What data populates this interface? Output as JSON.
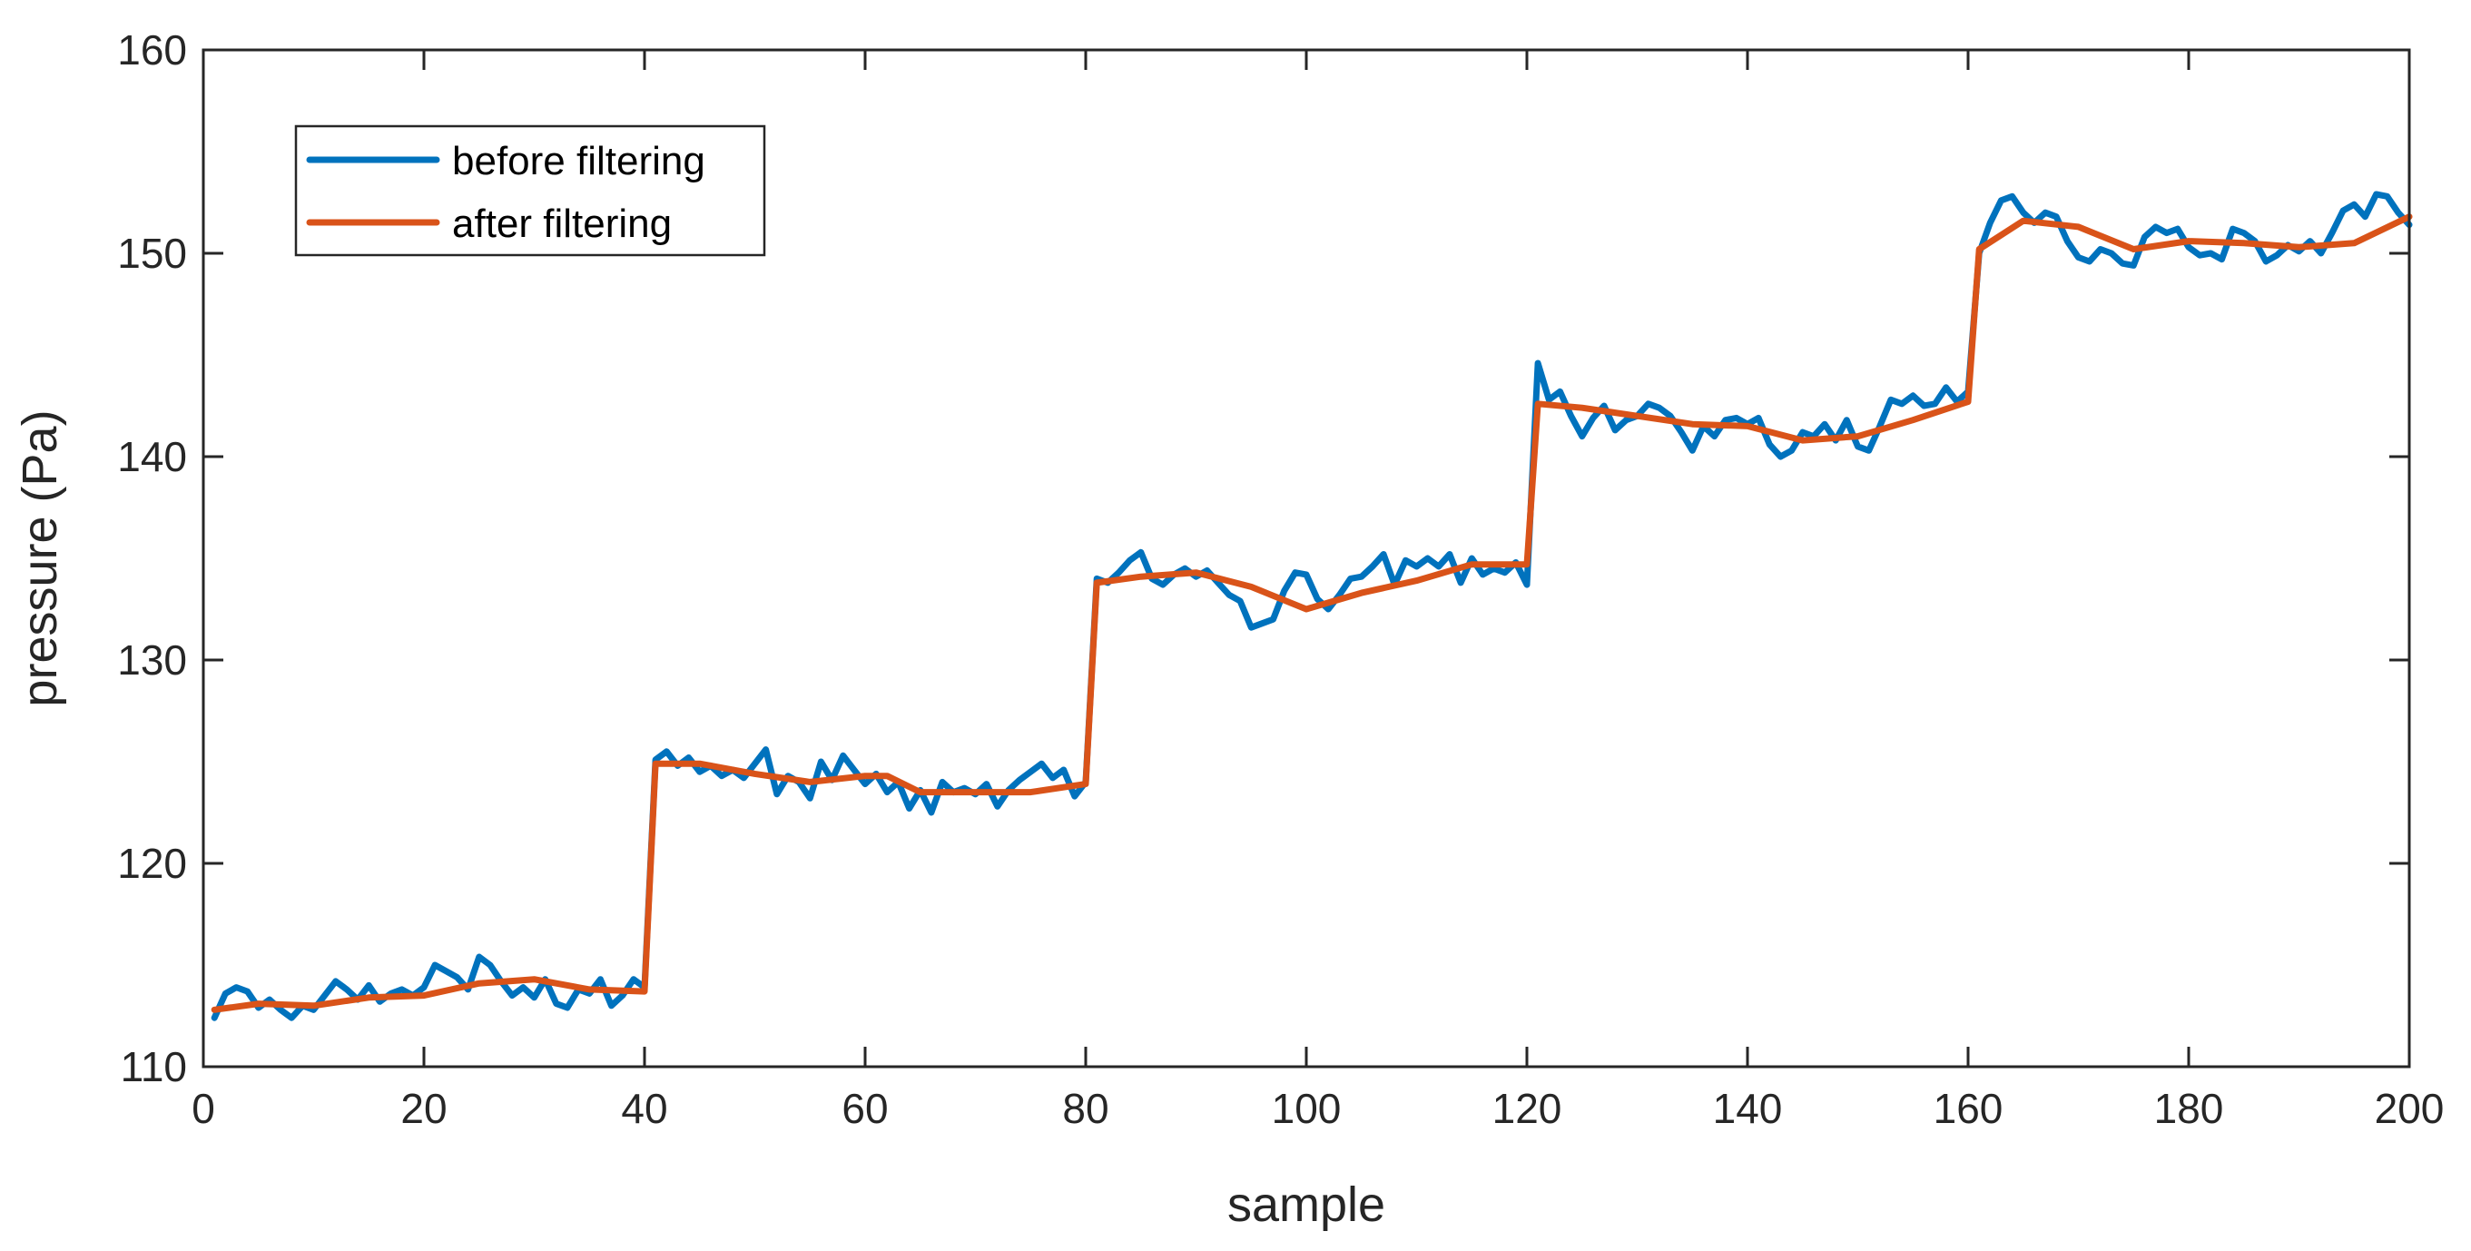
{
  "chart_data": {
    "type": "line",
    "title": "",
    "xlabel": "sample",
    "ylabel": "pressure (Pa)",
    "xlim": [
      0,
      200
    ],
    "ylim": [
      110,
      160
    ],
    "xticks": [
      0,
      20,
      40,
      60,
      80,
      100,
      120,
      140,
      160,
      180,
      200
    ],
    "yticks": [
      110,
      120,
      130,
      140,
      150,
      160
    ],
    "grid": false,
    "legend_position": "top-left",
    "series": [
      {
        "name": "before filtering",
        "color": "#0072BD",
        "x": [
          1,
          2,
          3,
          4,
          5,
          6,
          7,
          8,
          9,
          10,
          11,
          12,
          13,
          14,
          15,
          16,
          17,
          18,
          19,
          20,
          21,
          22,
          23,
          24,
          25,
          26,
          27,
          28,
          29,
          30,
          31,
          32,
          33,
          34,
          35,
          36,
          37,
          38,
          39,
          40,
          41,
          42,
          43,
          44,
          45,
          46,
          47,
          48,
          49,
          50,
          51,
          52,
          53,
          54,
          55,
          56,
          57,
          58,
          59,
          60,
          61,
          62,
          63,
          64,
          65,
          66,
          67,
          68,
          69,
          70,
          71,
          72,
          73,
          74,
          75,
          76,
          77,
          78,
          79,
          80,
          81,
          82,
          83,
          84,
          85,
          86,
          87,
          88,
          89,
          90,
          91,
          92,
          93,
          94,
          95,
          96,
          97,
          98,
          99,
          100,
          101,
          102,
          103,
          104,
          105,
          106,
          107,
          108,
          109,
          110,
          111,
          112,
          113,
          114,
          115,
          116,
          117,
          118,
          119,
          120,
          121,
          122,
          123,
          124,
          125,
          126,
          127,
          128,
          129,
          130,
          131,
          132,
          133,
          134,
          135,
          136,
          137,
          138,
          139,
          140,
          141,
          142,
          143,
          144,
          145,
          146,
          147,
          148,
          149,
          150,
          151,
          152,
          153,
          154,
          155,
          156,
          157,
          158,
          159,
          160,
          161,
          162,
          163,
          164,
          165,
          166,
          167,
          168,
          169,
          170,
          171,
          172,
          173,
          174,
          175,
          176,
          177,
          178,
          179,
          180,
          181,
          182,
          183,
          184,
          185,
          186,
          187,
          188,
          189,
          190,
          191,
          192,
          193,
          194,
          195,
          196,
          197,
          198,
          199,
          200
        ],
        "y": [
          112.4,
          113.6,
          113.9,
          113.7,
          112.9,
          113.3,
          112.8,
          112.4,
          113.0,
          112.8,
          113.5,
          114.2,
          113.8,
          113.3,
          114.0,
          113.2,
          113.6,
          113.8,
          113.5,
          113.9,
          115.0,
          114.7,
          114.4,
          113.8,
          115.4,
          115.0,
          114.2,
          113.5,
          113.9,
          113.4,
          114.3,
          113.1,
          112.9,
          113.8,
          113.6,
          114.3,
          113.0,
          113.5,
          114.3,
          113.9,
          125.1,
          125.5,
          124.8,
          125.2,
          124.5,
          124.8,
          124.3,
          124.6,
          124.2,
          124.9,
          125.6,
          123.4,
          124.3,
          124.0,
          123.2,
          125.0,
          124.1,
          125.3,
          124.6,
          123.9,
          124.4,
          123.5,
          124.0,
          122.7,
          123.6,
          122.5,
          124.0,
          123.5,
          123.7,
          123.4,
          123.9,
          122.8,
          123.6,
          124.1,
          124.5,
          124.9,
          124.2,
          124.6,
          123.3,
          124.0,
          134.0,
          133.8,
          134.3,
          134.9,
          135.3,
          134.0,
          133.7,
          134.2,
          134.5,
          134.1,
          134.4,
          133.8,
          133.2,
          132.9,
          131.6,
          131.8,
          132.0,
          133.4,
          134.3,
          134.2,
          133.0,
          132.5,
          133.2,
          134.0,
          134.1,
          134.6,
          135.2,
          133.7,
          134.9,
          134.6,
          135.0,
          134.6,
          135.2,
          133.8,
          135.0,
          134.2,
          134.5,
          134.3,
          134.8,
          133.7,
          144.6,
          142.8,
          143.2,
          142.0,
          141.0,
          141.9,
          142.5,
          141.3,
          141.8,
          142.0,
          142.6,
          142.4,
          142.0,
          141.2,
          140.3,
          141.5,
          141.0,
          141.8,
          141.9,
          141.6,
          141.9,
          140.6,
          140.0,
          140.3,
          141.2,
          141.0,
          141.6,
          140.8,
          141.8,
          140.5,
          140.3,
          141.5,
          142.8,
          142.6,
          143.0,
          142.5,
          142.6,
          143.4,
          142.7,
          143.2,
          150.0,
          151.5,
          152.6,
          152.8,
          152.0,
          151.5,
          152.0,
          151.8,
          150.6,
          149.8,
          149.6,
          150.2,
          150.0,
          149.5,
          149.4,
          150.8,
          151.3,
          151.0,
          151.2,
          150.3,
          149.9,
          150.0,
          149.7,
          151.2,
          151.0,
          150.6,
          149.6,
          149.9,
          150.4,
          150.1,
          150.6,
          150.0,
          151.0,
          152.1,
          152.4,
          151.8,
          152.9,
          152.8,
          152.0,
          151.4
        ]
      },
      {
        "name": "after filtering",
        "color": "#D95319",
        "x": [
          1,
          5,
          10,
          15,
          20,
          25,
          30,
          35,
          40,
          41,
          45,
          50,
          55,
          60,
          62,
          65,
          70,
          75,
          80,
          81,
          85,
          90,
          95,
          100,
          105,
          110,
          115,
          120,
          121,
          125,
          130,
          135,
          140,
          145,
          150,
          155,
          160,
          161,
          165,
          170,
          175,
          180,
          185,
          190,
          195,
          200
        ],
        "y": [
          112.8,
          113.1,
          113.0,
          113.4,
          113.5,
          114.1,
          114.3,
          113.8,
          113.7,
          124.9,
          124.9,
          124.4,
          124.0,
          124.3,
          124.3,
          123.5,
          123.5,
          123.5,
          123.9,
          133.8,
          134.1,
          134.3,
          133.6,
          132.5,
          133.3,
          133.9,
          134.7,
          134.7,
          142.6,
          142.4,
          142.0,
          141.6,
          141.5,
          140.8,
          141.0,
          141.8,
          142.7,
          150.2,
          151.6,
          151.3,
          150.2,
          150.6,
          150.5,
          150.3,
          150.5,
          151.8
        ]
      }
    ]
  }
}
